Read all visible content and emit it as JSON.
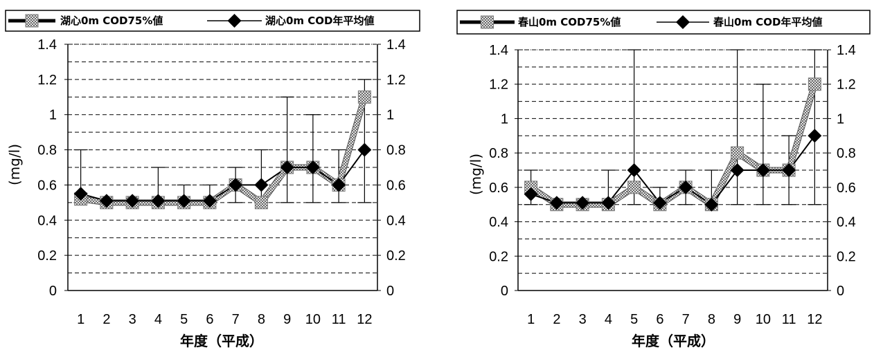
{
  "chart_data": [
    {
      "type": "line",
      "categories": [
        "1",
        "2",
        "3",
        "4",
        "5",
        "6",
        "7",
        "8",
        "9",
        "10",
        "11",
        "12"
      ],
      "series": [
        {
          "name": "湖心0m COD75%値",
          "values": [
            0.52,
            0.5,
            0.5,
            0.5,
            0.5,
            0.5,
            0.6,
            0.5,
            0.7,
            0.7,
            0.6,
            1.1
          ],
          "color": "#9a9a9a",
          "marker": "square-hatched"
        },
        {
          "name": "湖心0m COD年平均値",
          "values": [
            0.55,
            0.51,
            0.51,
            0.51,
            0.51,
            0.51,
            0.6,
            0.6,
            0.7,
            0.7,
            0.6,
            0.8
          ],
          "color": "#000000",
          "marker": "diamond"
        }
      ],
      "error_bars": {
        "min": [
          0.5,
          0.5,
          0.5,
          0.5,
          0.5,
          0.5,
          0.5,
          0.5,
          0.5,
          0.5,
          0.5,
          0.5
        ],
        "max": [
          0.8,
          0.5,
          0.5,
          0.7,
          0.6,
          0.6,
          0.7,
          0.8,
          1.1,
          1.0,
          0.8,
          1.2
        ]
      },
      "xlabel": "年度（平成）",
      "ylabel": "(mg/l)",
      "ylim": [
        0,
        1.4
      ],
      "yticks": [
        "0",
        "0.2",
        "0.4",
        "0.6",
        "0.8",
        "1",
        "1.2",
        "1.4"
      ],
      "grid": true,
      "legend": "top"
    },
    {
      "type": "line",
      "categories": [
        "1",
        "2",
        "3",
        "4",
        "5",
        "6",
        "7",
        "8",
        "9",
        "10",
        "11",
        "12"
      ],
      "series": [
        {
          "name": "春山0m COD75%値",
          "values": [
            0.6,
            0.5,
            0.5,
            0.5,
            0.6,
            0.5,
            0.6,
            0.5,
            0.8,
            0.7,
            0.7,
            1.2
          ],
          "color": "#9a9a9a",
          "marker": "square-hatched"
        },
        {
          "name": "春山0m COD年平均値",
          "values": [
            0.56,
            0.51,
            0.51,
            0.51,
            0.7,
            0.51,
            0.6,
            0.5,
            0.7,
            0.7,
            0.7,
            0.9
          ],
          "color": "#000000",
          "marker": "diamond"
        }
      ],
      "error_bars": {
        "min": [
          0.5,
          0.5,
          0.5,
          0.5,
          0.5,
          0.5,
          0.5,
          0.5,
          0.5,
          0.5,
          0.5,
          0.5
        ],
        "max": [
          0.7,
          0.5,
          0.5,
          0.7,
          1.4,
          0.6,
          0.7,
          0.7,
          1.4,
          1.2,
          0.9,
          1.4
        ]
      },
      "xlabel": "年度（平成）",
      "ylabel": "(mg/l)",
      "ylim": [
        0,
        1.4
      ],
      "yticks": [
        "0",
        "0.2",
        "0.4",
        "0.6",
        "0.8",
        "1",
        "1.2",
        "1.4"
      ],
      "grid": true,
      "legend": "top"
    }
  ]
}
